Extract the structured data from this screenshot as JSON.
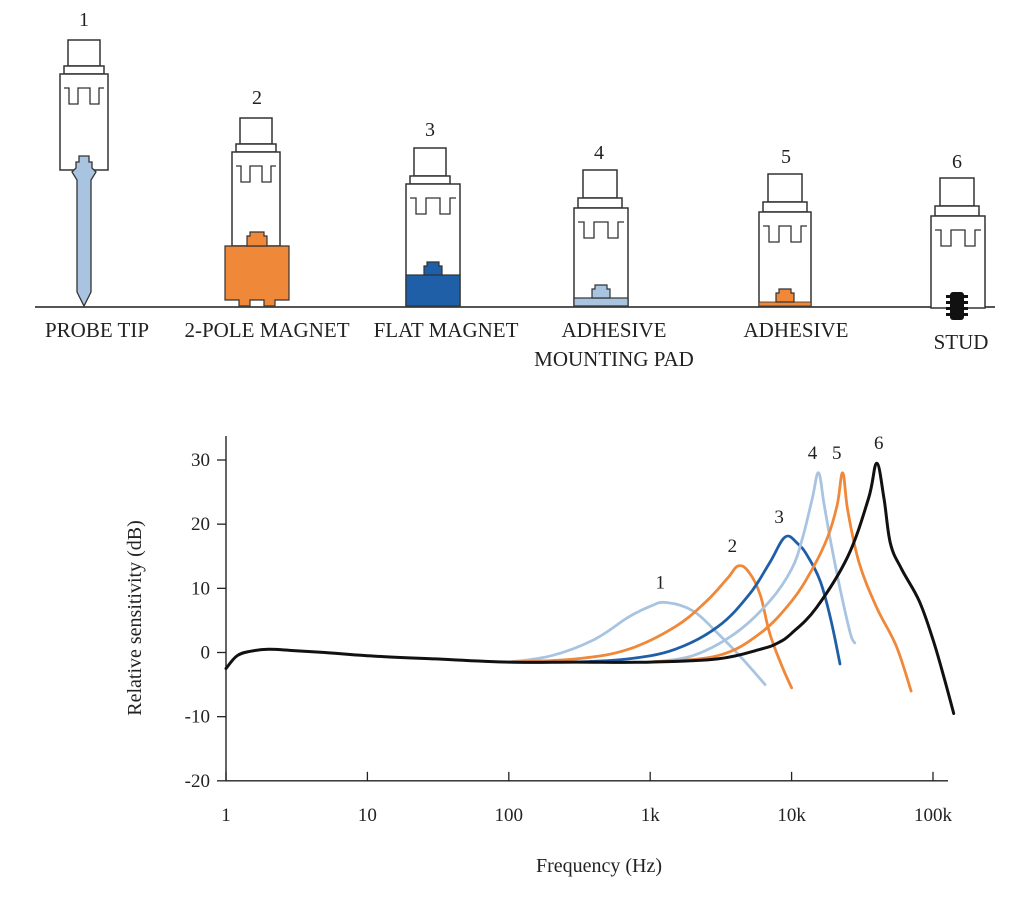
{
  "mountings": [
    {
      "number": "1",
      "name": "PROBE TIP",
      "name_line2": ""
    },
    {
      "number": "2",
      "name": "2-POLE MAGNET",
      "name_line2": ""
    },
    {
      "number": "3",
      "name": "FLAT MAGNET",
      "name_line2": ""
    },
    {
      "number": "4",
      "name": "ADHESIVE",
      "name_line2": "MOUNTING PAD"
    },
    {
      "number": "5",
      "name": "ADHESIVE",
      "name_line2": ""
    },
    {
      "number": "6",
      "name": "STUD",
      "name_line2": ""
    }
  ],
  "colors": {
    "light_blue": "#a8c4e0",
    "orange": "#f0883a",
    "dark_blue": "#1f5fa8",
    "black": "#111111",
    "outline": "#333333"
  },
  "chart_data": {
    "type": "line",
    "xlabel": "Frequency (Hz)",
    "ylabel": "Relative sensitivity (dB)",
    "x_scale": "log",
    "xlim": [
      1,
      100000
    ],
    "ylim": [
      -20,
      30
    ],
    "x_ticks": [
      {
        "value": 1,
        "label": "1"
      },
      {
        "value": 10,
        "label": "10"
      },
      {
        "value": 100,
        "label": "100"
      },
      {
        "value": 1000,
        "label": "1k"
      },
      {
        "value": 10000,
        "label": "10k"
      },
      {
        "value": 100000,
        "label": "100k"
      }
    ],
    "y_ticks": [
      {
        "value": 30,
        "label": "30"
      },
      {
        "value": 20,
        "label": "20"
      },
      {
        "value": 10,
        "label": "10"
      },
      {
        "value": 0,
        "label": "0"
      },
      {
        "value": -10,
        "label": "-10"
      },
      {
        "value": -20,
        "label": "-20"
      }
    ],
    "grid": false,
    "series": [
      {
        "name": "1",
        "color": "#a8c4e0",
        "x": [
          100,
          200,
          400,
          700,
          1000,
          1300,
          2000,
          3000,
          4500,
          6500
        ],
        "y": [
          -1.5,
          -0.5,
          2,
          5.5,
          7.2,
          7.8,
          6.5,
          3,
          -1,
          -5
        ]
      },
      {
        "name": "2",
        "color": "#f0883a",
        "x": [
          100,
          300,
          700,
          1500,
          2500,
          3500,
          4200,
          5000,
          6000,
          7000,
          8500,
          10000
        ],
        "y": [
          -1.5,
          -1,
          0.5,
          4,
          8,
          11.5,
          13.5,
          12.5,
          9,
          3,
          -2,
          -5.5
        ]
      },
      {
        "name": "3",
        "color": "#1f5fa8",
        "x": [
          300,
          700,
          1500,
          3000,
          5000,
          7000,
          9000,
          11000,
          13000,
          16000,
          19000,
          22000
        ],
        "y": [
          -1.5,
          -1,
          0.5,
          4,
          9,
          14,
          18,
          17,
          15,
          11,
          5,
          -1.8
        ]
      },
      {
        "name": "4",
        "color": "#a8c4e0",
        "x": [
          1000,
          2000,
          4000,
          7000,
          10000,
          12000,
          14000,
          15500,
          17000,
          19000,
          22000,
          26000,
          28000
        ],
        "y": [
          -1.5,
          -0.5,
          3,
          8,
          13,
          18,
          24,
          28,
          23,
          17,
          10,
          3,
          1.5
        ]
      },
      {
        "name": "5",
        "color": "#f0883a",
        "x": [
          1000,
          3000,
          6000,
          10000,
          14000,
          18000,
          21000,
          23000,
          25000,
          30000,
          40000,
          55000,
          70000
        ],
        "y": [
          -1.5,
          -0.5,
          3,
          8,
          13,
          18,
          23,
          28,
          22,
          14,
          7,
          1,
          -6
        ]
      },
      {
        "name": "6",
        "color": "#111111",
        "x": [
          1,
          1.2,
          1.5,
          2,
          3,
          5,
          10,
          30,
          100,
          300,
          1000,
          3000,
          6000,
          8000,
          10000,
          15000,
          25000,
          35000,
          40000,
          45000,
          50000,
          60000,
          80000,
          100000,
          120000,
          140000
        ],
        "y": [
          -2.5,
          -0.5,
          0.2,
          0.5,
          0.3,
          0,
          -0.5,
          -1,
          -1.5,
          -1.5,
          -1.5,
          -1,
          0.5,
          1.5,
          3,
          7,
          15,
          24,
          29.5,
          24,
          17,
          13,
          8,
          2,
          -4,
          -9.5
        ]
      }
    ]
  }
}
